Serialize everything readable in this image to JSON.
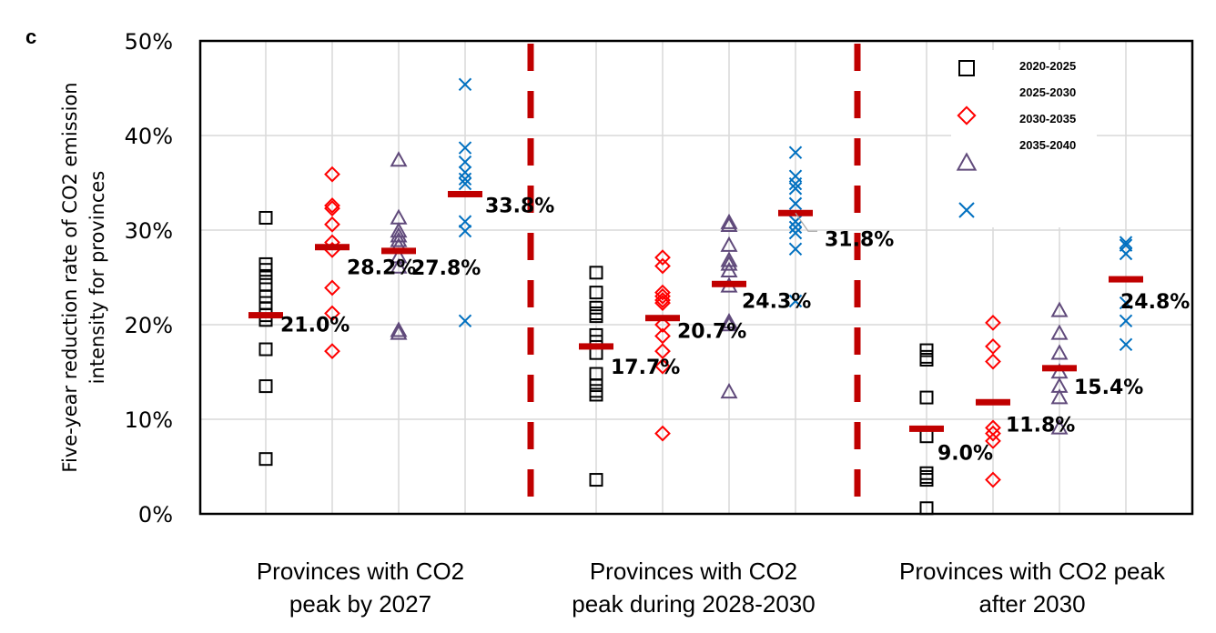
{
  "panel_label": "c",
  "chart_data": {
    "type": "scatter",
    "title": "",
    "xlabel": "",
    "ylabel": "Five-year reduction rate of CO2 emission intensity for provinces",
    "ylabel_lines": [
      "Five-year reduction rate of CO2 emission",
      "intensity for provinces"
    ],
    "ylim": [
      0,
      50
    ],
    "yticks": [
      0,
      10,
      20,
      30,
      40,
      50
    ],
    "ytick_labels": [
      "0%",
      "10%",
      "20%",
      "30%",
      "40%",
      "50%"
    ],
    "grid": true,
    "legend_position": "top-right",
    "groups": [
      {
        "label_lines": [
          "Provinces with CO2",
          "peak by 2027"
        ]
      },
      {
        "label_lines": [
          "Provinces with CO2",
          "peak during 2028-2030"
        ]
      },
      {
        "label_lines": [
          "Provinces with CO2 peak",
          "after 2030"
        ]
      }
    ],
    "series": [
      {
        "name": "2020-2025",
        "marker": "square",
        "color": "#000000",
        "values": [
          [
            31.3,
            26.4,
            25.8,
            25.0,
            24.2,
            23.0,
            22.3,
            21.7,
            21.0,
            20.5,
            17.4,
            13.5,
            5.8
          ],
          [
            25.5,
            23.4,
            21.8,
            21.2,
            20.9,
            18.9,
            18.2,
            17.0,
            14.8,
            13.6,
            13.0,
            12.6,
            3.6
          ],
          [
            17.3,
            16.6,
            16.3,
            12.3,
            8.2,
            4.3,
            3.9,
            3.6,
            0.6
          ]
        ],
        "means": [
          21.0,
          17.7,
          9.0
        ],
        "mean_labels": [
          "21.0%",
          "17.7%",
          "9.0%"
        ]
      },
      {
        "name": "2025-2030",
        "marker": "diamond",
        "color": "#ff0000",
        "values": [
          [
            35.9,
            32.6,
            32.3,
            30.6,
            28.7,
            27.9,
            23.9,
            21.2,
            17.2
          ],
          [
            27.1,
            26.2,
            23.4,
            23.0,
            22.6,
            22.3,
            20.0,
            18.8,
            17.2,
            15.6,
            8.5
          ],
          [
            20.2,
            17.7,
            16.1,
            9.1,
            8.5,
            7.7,
            3.6
          ]
        ],
        "means": [
          28.2,
          20.7,
          11.8
        ],
        "mean_labels": [
          "28.2%",
          "20.7%",
          "11.8%"
        ]
      },
      {
        "name": "2030-2035",
        "marker": "triangle",
        "color": "#604a7b",
        "values": [
          [
            37.4,
            31.3,
            29.9,
            29.4,
            28.9,
            28.3,
            27.2,
            26.1,
            19.4,
            19.1
          ],
          [
            30.8,
            30.5,
            28.4,
            26.8,
            26.4,
            25.7,
            24.1,
            20.3,
            20.0,
            12.9
          ],
          [
            21.5,
            19.1,
            17.0,
            15.0,
            13.5,
            12.3,
            9.1
          ]
        ],
        "means": [
          27.8,
          24.3,
          15.4
        ],
        "mean_labels": [
          "27.8%",
          "24.3%",
          "15.4%"
        ]
      },
      {
        "name": "2035-2040",
        "marker": "x",
        "color": "#0070c0",
        "values": [
          [
            45.4,
            38.7,
            37.2,
            36.1,
            35.4,
            34.9,
            30.9,
            29.9,
            20.4
          ],
          [
            38.2,
            35.7,
            34.9,
            34.4,
            32.8,
            30.9,
            30.3,
            29.7,
            28.0,
            22.5
          ],
          [
            28.7,
            28.4,
            27.5,
            22.3,
            20.4,
            17.9
          ]
        ],
        "means": [
          33.8,
          31.8,
          24.8
        ],
        "mean_labels": [
          "33.8%",
          "31.8%",
          "24.8%"
        ]
      }
    ],
    "mean_marker_color": "#c00000",
    "divider_color": "#c00000"
  }
}
